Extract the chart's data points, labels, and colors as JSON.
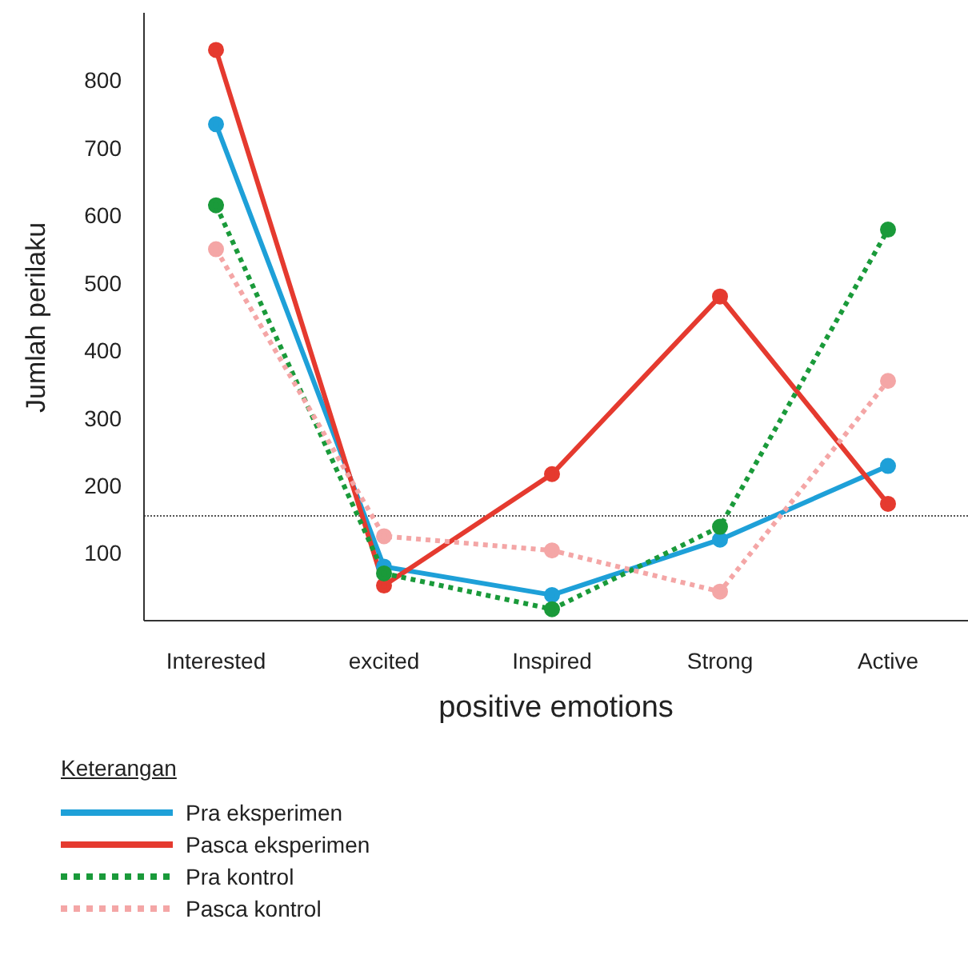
{
  "chart_data": {
    "type": "line",
    "xlabel": "positive emotions",
    "ylabel": "Jumlah perilaku",
    "legend_title": "Keterangan",
    "categories": [
      "Interested",
      "excited",
      "Inspired",
      "Strong",
      "Active"
    ],
    "series": [
      {
        "name": "Pra eksperimen",
        "color": "#1ea0d8",
        "line_style": "solid",
        "values": [
          735,
          80,
          38,
          120,
          229
        ]
      },
      {
        "name": "Pasca eksperimen",
        "color": "#e53a2f",
        "line_style": "solid",
        "values": [
          845,
          52,
          217,
          480,
          173
        ]
      },
      {
        "name": "Pra kontrol",
        "color": "#1a9a3a",
        "line_style": "dotted",
        "values": [
          615,
          70,
          17,
          139,
          579
        ]
      },
      {
        "name": "Pasca kontrol",
        "color": "#f4a6a6",
        "line_style": "dotted",
        "values": [
          550,
          125,
          104,
          43,
          355
        ]
      }
    ],
    "ylim": [
      0,
      900
    ],
    "yticks": [
      100,
      200,
      300,
      400,
      500,
      600,
      700,
      800
    ],
    "grid": false,
    "legend": "bottom",
    "marker": "circle",
    "ref_lines": [
      {
        "axis": "y",
        "value": 155,
        "color": "#555555",
        "line_style": "dotted"
      }
    ]
  }
}
